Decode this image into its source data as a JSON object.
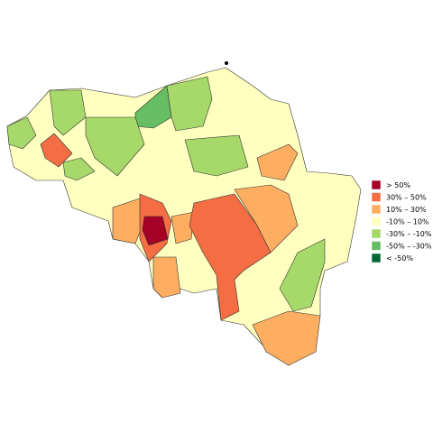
{
  "legend": {
    "items": [
      {
        "label": ">  50%",
        "color": "#a50026"
      },
      {
        "label": "30%  –  50%",
        "color": "#f46d43"
      },
      {
        "label": "10%  –  30%",
        "color": "#fdae61"
      },
      {
        "label": "-10%  –  10%",
        "color": "#ffffbf"
      },
      {
        "label": "-30%  –  -10%",
        "color": "#a6d96a"
      },
      {
        "label": "-50%  –  -30%",
        "color": "#66bd63"
      },
      {
        "label": "< -50%",
        "color": "#006837"
      }
    ]
  }
}
